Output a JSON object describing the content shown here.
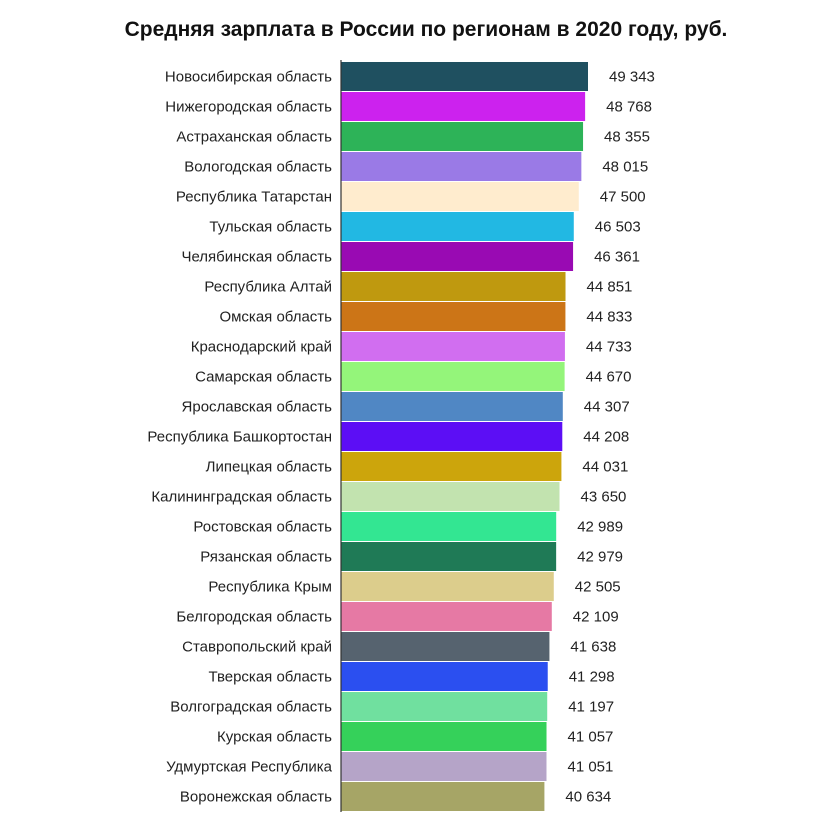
{
  "chart_data": {
    "type": "bar",
    "orientation": "horizontal",
    "title": "Средняя зарплата в России по регионам в 2020 году, руб.",
    "categories": [
      "Новосибирская область",
      "Нижегородская область",
      "Астраханская область",
      "Вологодская область",
      "Республика Татарстан",
      "Тульская область",
      "Челябинская область",
      "Республика Алтай",
      "Омская область",
      "Краснодарский край",
      "Самарская область",
      "Ярославская область",
      "Республика Башкортостан",
      "Липецкая область",
      "Калининградская область",
      "Ростовская область",
      "Рязанская область",
      "Республика Крым",
      "Белгородская область",
      "Ставропольский край",
      "Тверская область",
      "Волгоградская область",
      "Курская область",
      "Удмуртская Республика",
      "Воронежская область"
    ],
    "values": [
      49343,
      48768,
      48355,
      48015,
      47500,
      46503,
      46361,
      44851,
      44833,
      44733,
      44670,
      44307,
      44208,
      44031,
      43650,
      42989,
      42979,
      42505,
      42109,
      41638,
      41298,
      41197,
      41057,
      41051,
      40634
    ],
    "value_labels": [
      "49 343",
      "48 768",
      "48 355",
      "48 015",
      "47 500",
      "46 503",
      "46 361",
      "44 851",
      "44 833",
      "44 733",
      "44 670",
      "44 307",
      "44 208",
      "44 031",
      "43 650",
      "42 989",
      "42 979",
      "42 505",
      "42 109",
      "41 638",
      "41 298",
      "41 197",
      "41 057",
      "41 051",
      "40 634"
    ],
    "colors": [
      "#1f5060",
      "#cc22ee",
      "#2db358",
      "#9a7ae6",
      "#ffecce",
      "#22b8e3",
      "#990ab3",
      "#bf990f",
      "#cc7517",
      "#d16ef0",
      "#94f57a",
      "#5087c4",
      "#5c0ef5",
      "#cca50c",
      "#c2e3af",
      "#33e692",
      "#1f7a56",
      "#dccd8c",
      "#e679a4",
      "#56636f",
      "#2b4ff0",
      "#70e09f",
      "#35d15a",
      "#b5a4c8",
      "#a6a566"
    ],
    "xlim": [
      0,
      49343
    ],
    "grid": false,
    "legend": "none"
  }
}
